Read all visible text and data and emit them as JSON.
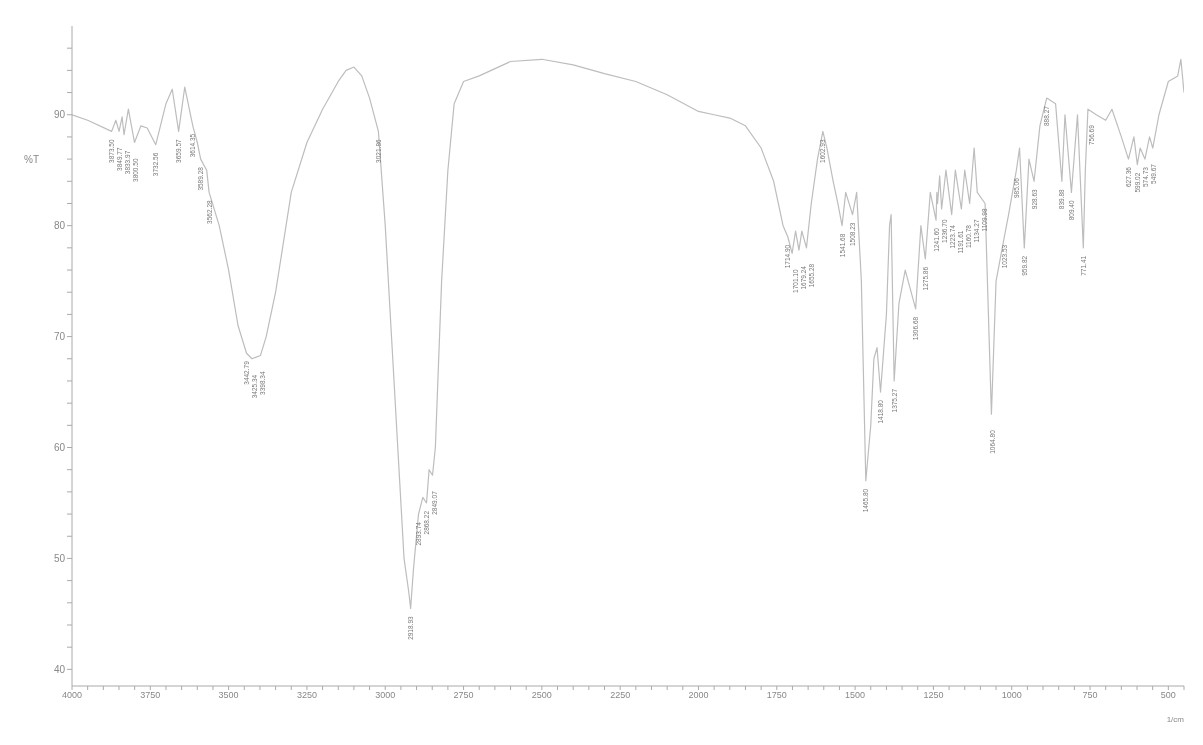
{
  "chart_data": {
    "type": "line",
    "xlabel": "1/cm",
    "ylabel": "%T",
    "xlim": [
      4000,
      450
    ],
    "ylim": [
      38.5,
      98
    ],
    "grid": false,
    "marker": "none",
    "line_style": "solid",
    "xticks": [
      4000,
      {
        "value": 3950,
        "label": null
      },
      {
        "value": 3900,
        "label": null
      },
      {
        "value": 3850,
        "label": null
      },
      {
        "value": 3800,
        "label": null
      },
      3750,
      {
        "value": 3700,
        "label": null
      },
      {
        "value": 3650,
        "label": null
      },
      {
        "value": 3600,
        "label": null
      },
      {
        "value": 3550,
        "label": null
      },
      3500,
      {
        "value": 3450,
        "label": null
      },
      {
        "value": 3400,
        "label": null
      },
      {
        "value": 3350,
        "label": null
      },
      {
        "value": 3300,
        "label": null
      },
      3250,
      {
        "value": 3200,
        "label": null
      },
      {
        "value": 3150,
        "label": null
      },
      {
        "value": 3100,
        "label": null
      },
      {
        "value": 3050,
        "label": null
      },
      3000,
      {
        "value": 2950,
        "label": null
      },
      {
        "value": 2900,
        "label": null
      },
      {
        "value": 2850,
        "label": null
      },
      {
        "value": 2800,
        "label": null
      },
      2750,
      {
        "value": 2700,
        "label": null
      },
      {
        "value": 2650,
        "label": null
      },
      {
        "value": 2600,
        "label": null
      },
      {
        "value": 2550,
        "label": null
      },
      2500,
      {
        "value": 2450,
        "label": null
      },
      {
        "value": 2400,
        "label": null
      },
      {
        "value": 2350,
        "label": null
      },
      {
        "value": 2300,
        "label": null
      },
      2250,
      {
        "value": 2200,
        "label": null
      },
      {
        "value": 2150,
        "label": null
      },
      {
        "value": 2100,
        "label": null
      },
      {
        "value": 2050,
        "label": null
      },
      2000,
      {
        "value": 1950,
        "label": null
      },
      {
        "value": 1900,
        "label": null
      },
      {
        "value": 1850,
        "label": null
      },
      {
        "value": 1800,
        "label": null
      },
      1750,
      {
        "value": 1700,
        "label": null
      },
      {
        "value": 1650,
        "label": null
      },
      {
        "value": 1600,
        "label": null
      },
      {
        "value": 1550,
        "label": null
      },
      1500,
      {
        "value": 1450,
        "label": null
      },
      {
        "value": 1400,
        "label": null
      },
      {
        "value": 1350,
        "label": null
      },
      {
        "value": 1300,
        "label": null
      },
      1250,
      {
        "value": 1200,
        "label": null
      },
      {
        "value": 1150,
        "label": null
      },
      {
        "value": 1100,
        "label": null
      },
      {
        "value": 1050,
        "label": null
      },
      1000,
      {
        "value": 950,
        "label": null
      },
      {
        "value": 900,
        "label": null
      },
      {
        "value": 850,
        "label": null
      },
      {
        "value": 800,
        "label": null
      },
      750,
      {
        "value": 700,
        "label": null
      },
      {
        "value": 650,
        "label": null
      },
      {
        "value": 600,
        "label": null
      },
      {
        "value": 550,
        "label": null
      },
      500,
      {
        "value": 450,
        "label": null
      }
    ],
    "yticks": [
      40,
      {
        "value": 42,
        "label": null
      },
      {
        "value": 44,
        "label": null
      },
      {
        "value": 46,
        "label": null
      },
      {
        "value": 48,
        "label": null
      },
      50,
      {
        "value": 52,
        "label": null
      },
      {
        "value": 54,
        "label": null
      },
      {
        "value": 56,
        "label": null
      },
      {
        "value": 58,
        "label": null
      },
      60,
      {
        "value": 62,
        "label": null
      },
      {
        "value": 64,
        "label": null
      },
      {
        "value": 66,
        "label": null
      },
      {
        "value": 68,
        "label": null
      },
      70,
      {
        "value": 72,
        "label": null
      },
      {
        "value": 74,
        "label": null
      },
      {
        "value": 76,
        "label": null
      },
      {
        "value": 78,
        "label": null
      },
      80,
      {
        "value": 82,
        "label": null
      },
      {
        "value": 84,
        "label": null
      },
      {
        "value": 86,
        "label": null
      },
      {
        "value": 88,
        "label": null
      },
      90,
      {
        "value": 92,
        "label": null
      },
      {
        "value": 94,
        "label": null
      },
      {
        "value": 96,
        "label": null
      }
    ],
    "series": [
      {
        "color": "#bdbdbd",
        "x": [
          4000,
          3950,
          3873.5,
          3860,
          3849.77,
          3840,
          3833.97,
          3820,
          3800.5,
          3780,
          3760,
          3732.56,
          3700,
          3680,
          3659.57,
          3640,
          3614.35,
          3600,
          3589.28,
          3570,
          3562.28,
          3530,
          3500,
          3470,
          3442.79,
          3425.34,
          3398.34,
          3380,
          3350,
          3300,
          3250,
          3200,
          3150,
          3125,
          3100,
          3075,
          3050,
          3021.86,
          3000,
          2980,
          2960,
          2940,
          2925,
          2918.93,
          2910,
          2893.74,
          2880,
          2868.22,
          2860,
          2849.07,
          2840,
          2820,
          2800,
          2780,
          2750,
          2700,
          2600,
          2500,
          2400,
          2300,
          2200,
          2100,
          2000,
          1950,
          1900,
          1850,
          1800,
          1760,
          1730,
          1714.9,
          1701.1,
          1690,
          1679.24,
          1670,
          1655.28,
          1640,
          1620,
          1602.93,
          1590,
          1570,
          1555,
          1541.68,
          1530,
          1508.23,
          1495,
          1480,
          1465.8,
          1450,
          1440,
          1430,
          1418.8,
          1400,
          1390,
          1385,
          1375.27,
          1360,
          1340,
          1306.68,
          1290,
          1275.86,
          1260,
          1241.6,
          1239,
          1236.7,
          1230,
          1223.74,
          1210,
          1191.61,
          1180,
          1160.78,
          1150,
          1134.27,
          1120,
          1109.98,
          1085,
          1064.8,
          1050,
          1023.53,
          1010,
          985.06,
          975,
          959.82,
          945,
          928.63,
          910,
          888.27,
          860,
          839.88,
          830,
          809.4,
          790,
          771.41,
          765,
          756.69,
          730,
          700,
          680,
          650,
          627.36,
          610,
          599.02,
          590,
          574.73,
          560,
          549.67,
          530,
          500,
          470,
          460,
          450
        ],
        "values": [
          90,
          89.5,
          88.5,
          89.5,
          88.5,
          89.8,
          88.2,
          90.5,
          87.5,
          89,
          88.8,
          87.3,
          91,
          92.3,
          88.5,
          92.5,
          89,
          87.5,
          86,
          85,
          83,
          80,
          76,
          71,
          68.5,
          68,
          68.3,
          70,
          74,
          83,
          87.5,
          90.5,
          93,
          94,
          94.3,
          93.5,
          91.5,
          88.5,
          80,
          70,
          60,
          50,
          47,
          45.5,
          49,
          54,
          55.5,
          55,
          58,
          57.5,
          60,
          75,
          85,
          91,
          93,
          93.5,
          94.8,
          95,
          94.5,
          93.7,
          93,
          91.8,
          90.3,
          90,
          89.7,
          89,
          87,
          84,
          80,
          79,
          77.5,
          79.5,
          77.8,
          79.5,
          78,
          82,
          86,
          88.5,
          87,
          84,
          82,
          80,
          83,
          81,
          83,
          75,
          57,
          62,
          68,
          69,
          65,
          72,
          80,
          81,
          66,
          73,
          76,
          72.5,
          80,
          77,
          83,
          80.5,
          83,
          82,
          84.5,
          81.5,
          85,
          81,
          85,
          81.5,
          85,
          82,
          87,
          83,
          82,
          63,
          75,
          79,
          81,
          85,
          87,
          78,
          86,
          84,
          89,
          91.5,
          91,
          84,
          90,
          83,
          90,
          78,
          85,
          90.5,
          90,
          89.5,
          90.5,
          88,
          86,
          88,
          85.5,
          87,
          86,
          88,
          87,
          90,
          93,
          93.5,
          95,
          92
        ]
      }
    ],
    "annotations": [
      {
        "text": "3873.50",
        "x": 3873.5,
        "y": 88.5
      },
      {
        "text": "3849.77",
        "x": 3849.77,
        "y": 88.5
      },
      {
        "text": "3833.97",
        "x": 3833.97,
        "y": 88.2
      },
      {
        "text": "3800.50",
        "x": 3800.5,
        "y": 87.5
      },
      {
        "text": "3732.56",
        "x": 3732.56,
        "y": 87.3
      },
      {
        "text": "3659.57",
        "x": 3659.57,
        "y": 88.5
      },
      {
        "text": "3614.35",
        "x": 3614.35,
        "y": 89
      },
      {
        "text": "3589.28",
        "x": 3589.28,
        "y": 86
      },
      {
        "text": "3562.28",
        "x": 3562.28,
        "y": 83
      },
      {
        "text": "3442.79",
        "x": 3442.79,
        "y": 68.5
      },
      {
        "text": "3425.34",
        "x": 3425.34,
        "y": 68
      },
      {
        "text": "3398.34",
        "x": 3398.34,
        "y": 68.3
      },
      {
        "text": "3021.86",
        "x": 3021.86,
        "y": 88.5
      },
      {
        "text": "2918.93",
        "x": 2918.93,
        "y": 45.5
      },
      {
        "text": "2893.74",
        "x": 2893.74,
        "y": 54
      },
      {
        "text": "2868.22",
        "x": 2868.22,
        "y": 55
      },
      {
        "text": "2849.07",
        "x": 2849.07,
        "y": 57.5
      },
      {
        "text": "1714.90",
        "x": 1714.9,
        "y": 79
      },
      {
        "text": "1701.10",
        "x": 1701.1,
        "y": 77.5
      },
      {
        "text": "1679.24",
        "x": 1679.24,
        "y": 77.8
      },
      {
        "text": "1655.28",
        "x": 1655.28,
        "y": 78
      },
      {
        "text": "1602.93",
        "x": 1602.93,
        "y": 88.5
      },
      {
        "text": "1541.68",
        "x": 1541.68,
        "y": 80
      },
      {
        "text": "1508.23",
        "x": 1508.23,
        "y": 81
      },
      {
        "text": "1465.80",
        "x": 1465.8,
        "y": 57
      },
      {
        "text": "1418.80",
        "x": 1418.8,
        "y": 65
      },
      {
        "text": "1375.27",
        "x": 1375.27,
        "y": 66
      },
      {
        "text": "1306.68",
        "x": 1306.68,
        "y": 72.5
      },
      {
        "text": "1275.86",
        "x": 1275.86,
        "y": 77
      },
      {
        "text": "1241.60",
        "x": 1241.6,
        "y": 80.5
      },
      {
        "text": "1236.70",
        "x": 1236.7,
        "y": 82
      },
      {
        "text": "1223.74",
        "x": 1223.74,
        "y": 81.5
      },
      {
        "text": "1191.61",
        "x": 1191.61,
        "y": 81
      },
      {
        "text": "1160.78",
        "x": 1160.78,
        "y": 81.5
      },
      {
        "text": "1134.27",
        "x": 1134.27,
        "y": 82
      },
      {
        "text": "1109.98",
        "x": 1109.98,
        "y": 83
      },
      {
        "text": "1064.80",
        "x": 1064.8,
        "y": 63
      },
      {
        "text": "1023.53",
        "x": 1023.53,
        "y": 79
      },
      {
        "text": "985.06",
        "x": 985.06,
        "y": 85
      },
      {
        "text": "959.82",
        "x": 959.82,
        "y": 78
      },
      {
        "text": "928.63",
        "x": 928.63,
        "y": 84
      },
      {
        "text": "888.27",
        "x": 888.27,
        "y": 91.5
      },
      {
        "text": "839.88",
        "x": 839.88,
        "y": 84
      },
      {
        "text": "809.40",
        "x": 809.4,
        "y": 83
      },
      {
        "text": "771.41",
        "x": 771.41,
        "y": 78
      },
      {
        "text": "756.69",
        "x": 756.69,
        "y": 90.5
      },
      {
        "text": "627.36",
        "x": 627.36,
        "y": 86
      },
      {
        "text": "599.02",
        "x": 599.02,
        "y": 85.5
      },
      {
        "text": "574.73",
        "x": 574.73,
        "y": 86
      },
      {
        "text": "549.67",
        "x": 549.67,
        "y": 87
      }
    ]
  }
}
